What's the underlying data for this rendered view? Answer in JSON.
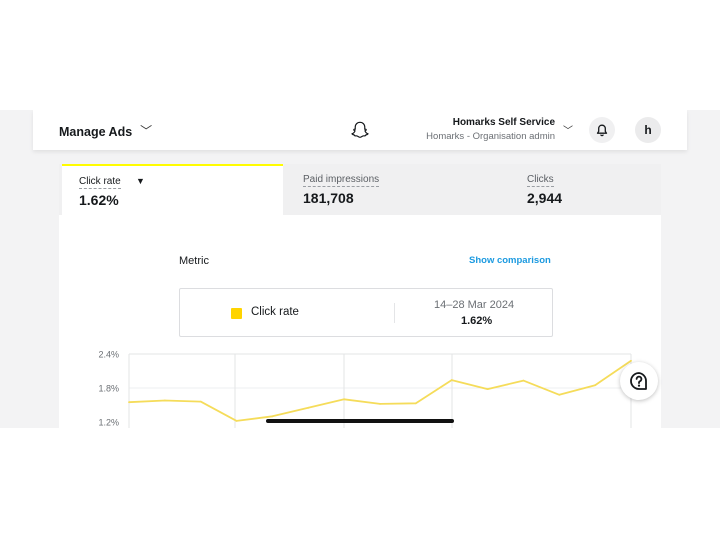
{
  "header": {
    "manage_label": "Manage Ads",
    "org_name": "Homarks Self Service",
    "org_sub": "Homarks - Organisation admin",
    "avatar_letter": "h"
  },
  "tabs": [
    {
      "label": "Click rate",
      "value": "1.62%"
    },
    {
      "label": "Paid impressions",
      "value": "181,708"
    },
    {
      "label": "Clicks",
      "value": "2,944"
    }
  ],
  "metric": {
    "title": "Metric",
    "show_comparison": "Show comparison",
    "legend_name": "Click rate",
    "date_range": "14–28 Mar 2024",
    "range_value": "1.62%"
  },
  "colors": {
    "accent": "#fffc00",
    "series": "#f5dc5a",
    "link": "#1c9ae0"
  },
  "chart_data": {
    "type": "line",
    "series": [
      {
        "name": "Click rate",
        "values": [
          1.55,
          1.58,
          1.56,
          1.22,
          1.3,
          1.45,
          1.6,
          1.52,
          1.53,
          1.94,
          1.78,
          1.93,
          1.68,
          1.85,
          2.28
        ]
      }
    ],
    "yticks": [
      "2.4%",
      "1.8%",
      "1.2%"
    ],
    "ylim": [
      1.2,
      2.4
    ]
  }
}
